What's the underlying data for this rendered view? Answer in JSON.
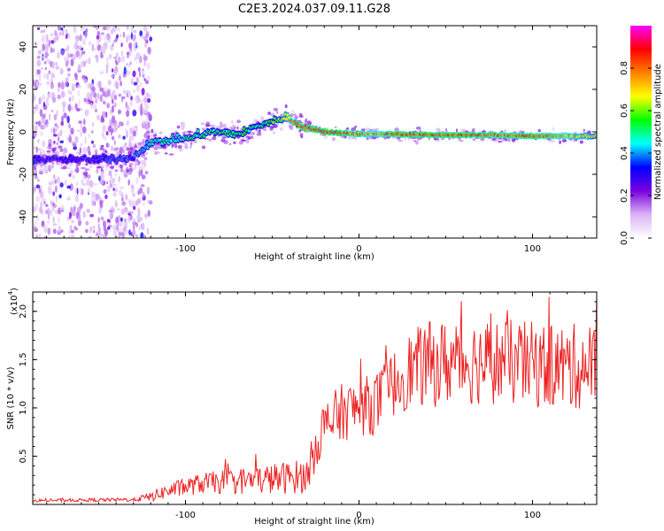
{
  "figure": {
    "title": "C2E3.2024.037.09.11.G28"
  },
  "chart_data": [
    {
      "type": "heatmap",
      "xlabel": "Height of straight line (km)",
      "ylabel": "Frequency (Hz)",
      "xlim": [
        -188,
        137
      ],
      "ylim": [
        -50,
        50
      ],
      "xticks": [
        -100,
        0,
        100
      ],
      "xtick_labels": [
        "-100",
        "0",
        "100"
      ],
      "yticks": [
        -40,
        -20,
        0,
        20,
        40
      ],
      "ytick_labels": [
        "-40",
        "-20",
        "0",
        "20",
        "40"
      ],
      "grid": false,
      "colorbar": {
        "label": "Normalized spectral amplitude",
        "range": [
          0,
          1
        ],
        "ticks": [
          0.0,
          0.2,
          0.4,
          0.6,
          0.8
        ],
        "tick_labels": [
          "0.0",
          "0.2",
          "0.4",
          "0.6",
          "0.8"
        ],
        "colormap": [
          "#ffffff",
          "#d9b3f5",
          "#7a00e0",
          "#0000ff",
          "#00ffff",
          "#00ff00",
          "#ffff00",
          "#ff8000",
          "#ff0000",
          "#ff00ff"
        ]
      },
      "ridge": {
        "x": [
          -188,
          -150,
          -130,
          -120,
          -100,
          -85,
          -70,
          -60,
          -50,
          -42,
          -38,
          -30,
          -20,
          -10,
          0,
          10,
          20,
          40,
          60,
          80,
          100,
          120,
          137
        ],
        "freq": [
          -13,
          -13,
          -12,
          -5,
          -3,
          0,
          -1,
          2,
          5,
          7,
          5,
          2,
          0,
          -0.5,
          -1,
          -1,
          -1,
          -1.5,
          -1.5,
          -1.5,
          -2,
          -2,
          -2
        ],
        "amplitude": [
          0.35,
          0.35,
          0.4,
          0.5,
          0.5,
          0.55,
          0.55,
          0.55,
          0.6,
          0.7,
          0.85,
          0.9,
          0.95,
          0.9,
          0.85,
          0.8,
          0.9,
          0.9,
          0.9,
          0.85,
          0.9,
          0.8,
          0.7
        ]
      }
    },
    {
      "type": "line",
      "xlabel": "Height of straight line (km)",
      "ylabel": "SNR (10 * v/v)",
      "y_multiplier_label": "(x10",
      "y_multiplier_exponent": "4",
      "xlim": [
        -188,
        137
      ],
      "ylim": [
        0,
        2.2
      ],
      "xticks": [
        -100,
        0,
        100
      ],
      "xtick_labels": [
        "-100",
        "0",
        "100"
      ],
      "yticks": [
        0.5,
        1.0,
        1.5,
        2.0
      ],
      "ytick_labels": [
        "0.5",
        "1.0",
        "1.5",
        "2.0"
      ],
      "grid": false,
      "series": [
        {
          "color": "#ee2222",
          "x_range": [
            -188,
            137
          ],
          "x_step": 0.5,
          "trend_x": [
            -188,
            -130,
            -120,
            -110,
            -90,
            -60,
            -40,
            -30,
            -25,
            -22,
            -10,
            0,
            10,
            20,
            30,
            40,
            60,
            80,
            100,
            120,
            137
          ],
          "trend_y": [
            0.04,
            0.05,
            0.08,
            0.14,
            0.22,
            0.25,
            0.28,
            0.3,
            0.6,
            0.75,
            0.95,
            1.0,
            1.05,
            1.25,
            1.4,
            1.45,
            1.48,
            1.48,
            1.45,
            1.42,
            1.45
          ],
          "noise_x": [
            -188,
            -130,
            -110,
            -60,
            -30,
            -20,
            0,
            20,
            40,
            80,
            137
          ],
          "noise_amp": [
            0.015,
            0.02,
            0.08,
            0.15,
            0.18,
            0.3,
            0.3,
            0.35,
            0.45,
            0.45,
            0.45
          ],
          "ymax_observed": 2.15
        }
      ]
    }
  ]
}
